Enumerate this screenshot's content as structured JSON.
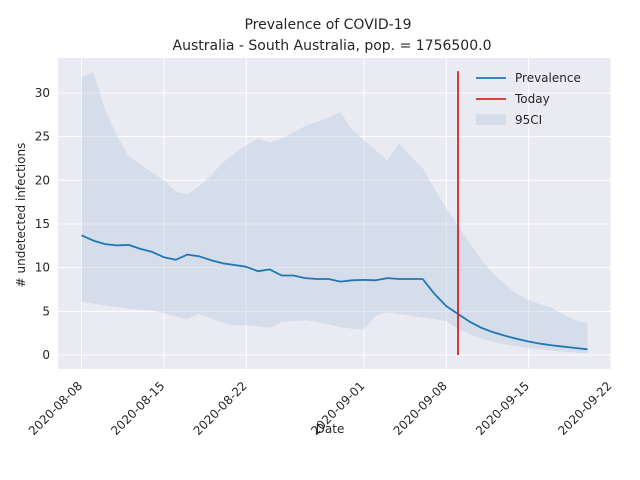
{
  "chart_data": {
    "type": "line",
    "title": "Prevalence of COVID-19",
    "subtitle": "Australia - South Australia, pop. = 1756500.0",
    "xlabel": "Date",
    "ylabel": "# undetected infections",
    "xlim": [
      "2020-08-06",
      "2020-09-22"
    ],
    "ylim": [
      -1.6,
      34.0
    ],
    "x_ticks": [
      "2020-08-08",
      "2020-08-15",
      "2020-08-22",
      "2020-09-01",
      "2020-09-08",
      "2020-09-15",
      "2020-09-22"
    ],
    "y_ticks": [
      0,
      5,
      10,
      15,
      20,
      25,
      30
    ],
    "grid": true,
    "legend_position": "top-right",
    "series": [
      {
        "name": "Prevalence",
        "color": "#1f77b4",
        "x": [
          "2020-08-08",
          "2020-08-09",
          "2020-08-10",
          "2020-08-11",
          "2020-08-12",
          "2020-08-13",
          "2020-08-14",
          "2020-08-15",
          "2020-08-16",
          "2020-08-17",
          "2020-08-18",
          "2020-08-19",
          "2020-08-20",
          "2020-08-21",
          "2020-08-22",
          "2020-08-23",
          "2020-08-24",
          "2020-08-25",
          "2020-08-26",
          "2020-08-27",
          "2020-08-28",
          "2020-08-29",
          "2020-08-30",
          "2020-08-31",
          "2020-09-01",
          "2020-09-02",
          "2020-09-03",
          "2020-09-04",
          "2020-09-05",
          "2020-09-06",
          "2020-09-07",
          "2020-09-08",
          "2020-09-09",
          "2020-09-10",
          "2020-09-11",
          "2020-09-12",
          "2020-09-13",
          "2020-09-14",
          "2020-09-15",
          "2020-09-16",
          "2020-09-17",
          "2020-09-18",
          "2020-09-19",
          "2020-09-20"
        ],
        "y": [
          13.7,
          13.1,
          12.7,
          12.55,
          12.6,
          12.15,
          11.8,
          11.2,
          10.9,
          11.5,
          11.3,
          10.85,
          10.5,
          10.3,
          10.1,
          9.6,
          9.8,
          9.1,
          9.1,
          8.8,
          8.7,
          8.7,
          8.4,
          8.55,
          8.6,
          8.55,
          8.8,
          8.7,
          8.7,
          8.7,
          7.0,
          5.6,
          4.7,
          3.8,
          3.1,
          2.6,
          2.2,
          1.85,
          1.55,
          1.3,
          1.1,
          0.95,
          0.8,
          0.65
        ]
      },
      {
        "name": "Today",
        "color": "#d62728",
        "x": [
          "2020-09-09",
          "2020-09-09"
        ],
        "y": [
          0,
          32.5
        ]
      }
    ],
    "band": {
      "name": "95CI",
      "color": "#b0c4de",
      "x": [
        "2020-08-08",
        "2020-08-09",
        "2020-08-10",
        "2020-08-11",
        "2020-08-12",
        "2020-08-13",
        "2020-08-14",
        "2020-08-15",
        "2020-08-16",
        "2020-08-17",
        "2020-08-18",
        "2020-08-19",
        "2020-08-20",
        "2020-08-21",
        "2020-08-22",
        "2020-08-23",
        "2020-08-24",
        "2020-08-25",
        "2020-08-26",
        "2020-08-27",
        "2020-08-28",
        "2020-08-29",
        "2020-08-30",
        "2020-08-31",
        "2020-09-01",
        "2020-09-02",
        "2020-09-03",
        "2020-09-04",
        "2020-09-05",
        "2020-09-06",
        "2020-09-07",
        "2020-09-08",
        "2020-09-09",
        "2020-09-10",
        "2020-09-11",
        "2020-09-12",
        "2020-09-13",
        "2020-09-14",
        "2020-09-15",
        "2020-09-16",
        "2020-09-17",
        "2020-09-18",
        "2020-09-19",
        "2020-09-20"
      ],
      "lower": [
        6.1,
        5.9,
        5.7,
        5.5,
        5.3,
        5.2,
        5.1,
        4.8,
        4.4,
        4.1,
        4.7,
        4.2,
        3.7,
        3.4,
        3.4,
        3.3,
        3.1,
        3.8,
        3.9,
        4.0,
        3.8,
        3.5,
        3.2,
        3.0,
        2.9,
        4.5,
        4.9,
        4.7,
        4.5,
        4.3,
        4.1,
        3.9,
        3.0,
        2.4,
        1.9,
        1.5,
        1.2,
        1.0,
        0.8,
        0.65,
        0.5,
        0.4,
        0.3,
        0.2
      ],
      "upper": [
        31.8,
        32.4,
        28.0,
        25.2,
        22.8,
        21.8,
        20.9,
        20.0,
        18.7,
        18.4,
        19.3,
        20.6,
        22.0,
        23.1,
        24.0,
        24.8,
        24.3,
        24.8,
        25.5,
        26.2,
        26.7,
        27.2,
        27.8,
        25.8,
        24.6,
        23.4,
        22.3,
        24.2,
        22.7,
        21.4,
        19.0,
        16.8,
        14.8,
        12.8,
        10.9,
        9.3,
        8.1,
        7.0,
        6.3,
        5.8,
        5.4,
        4.6,
        4.0,
        3.6
      ]
    }
  }
}
